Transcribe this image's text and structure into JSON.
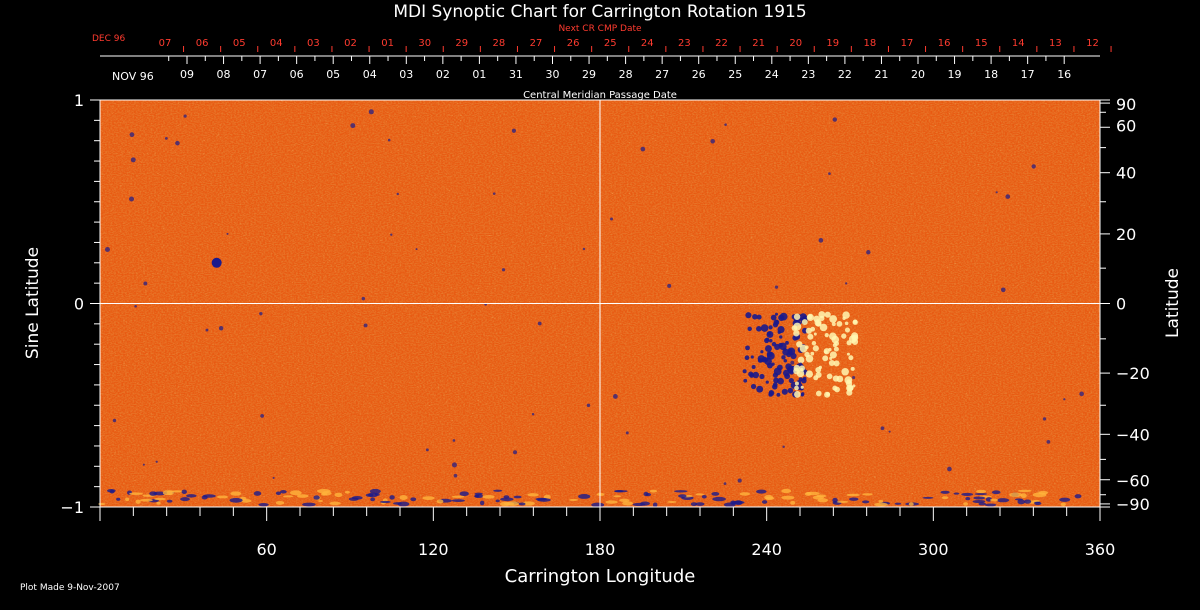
{
  "chart_data": {
    "type": "heatmap",
    "title": "MDI Synoptic Chart for Carrington Rotation 1915",
    "top_axis": {
      "label": "Central Meridian Passage Date",
      "month_label": "NOV 96",
      "ticks": [
        "09",
        "08",
        "07",
        "06",
        "05",
        "04",
        "03",
        "02",
        "01",
        "31",
        "30",
        "29",
        "28",
        "27",
        "26",
        "25",
        "24",
        "23",
        "22",
        "21",
        "20",
        "19",
        "18",
        "17",
        "16"
      ]
    },
    "next_cr_axis": {
      "label": "Next CR CMP Date",
      "month_label": "DEC 96",
      "ticks": [
        "07",
        "06",
        "05",
        "04",
        "03",
        "02",
        "01",
        "30",
        "29",
        "28",
        "27",
        "26",
        "25",
        "24",
        "23",
        "22",
        "21",
        "20",
        "19",
        "18",
        "17",
        "16",
        "15",
        "14",
        "13",
        "12"
      ],
      "color": "#ff3b2f"
    },
    "x_axis": {
      "label": "Carrington Longitude",
      "range": [
        0,
        360
      ],
      "tick_labels": [
        "60",
        "120",
        "180",
        "240",
        "300",
        "360"
      ],
      "tick_values": [
        60,
        120,
        180,
        240,
        300,
        360
      ]
    },
    "y_left": {
      "label": "Sine Latitude",
      "range": [
        -1,
        1
      ],
      "tick_labels": [
        "1",
        "0",
        "−1"
      ],
      "tick_values": [
        1,
        0,
        -1
      ]
    },
    "y_right": {
      "label": "Latitude",
      "tick_labels": [
        "90",
        "60",
        "40",
        "20",
        "0",
        "−20",
        "−40",
        "−60",
        "−90"
      ],
      "tick_values": [
        90,
        60,
        40,
        20,
        0,
        -20,
        -40,
        -60,
        -90
      ]
    },
    "crosshair": {
      "longitude": 180,
      "sine_latitude": 0
    },
    "palette": {
      "background": "#e85a12",
      "dark": "#c8200c",
      "light": "#ffb43c",
      "negative": "#1a1a8c",
      "positive": "#fff6b0"
    },
    "active_regions": [
      {
        "polarity": "mixed",
        "lon_range": [
          232,
          272
        ],
        "sinlat_range": [
          -0.45,
          -0.05
        ]
      },
      {
        "polarity": "negative",
        "lon": 42,
        "sinlat": 0.2
      }
    ]
  },
  "footer": {
    "plot_made": "Plot Made  9-Nov-2007"
  }
}
